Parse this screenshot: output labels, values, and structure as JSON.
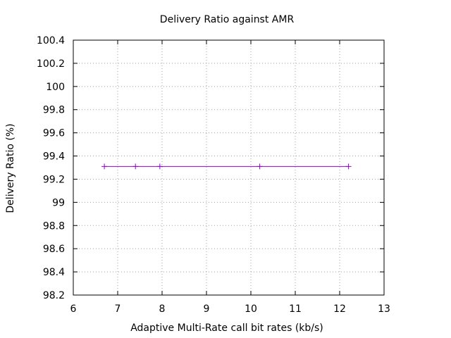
{
  "chart_data": {
    "type": "line",
    "title": "Delivery Ratio against AMR",
    "xlabel": "Adaptive Multi-Rate call bit rates (kb/s)",
    "ylabel": "Delivery Ratio (%)",
    "xlim": [
      6,
      13
    ],
    "ylim": [
      98.2,
      100.4
    ],
    "xticks": [
      "6",
      "7",
      "8",
      "9",
      "10",
      "11",
      "12",
      "13"
    ],
    "yticks": [
      "98.2",
      "98.4",
      "98.6",
      "98.8",
      "99",
      "99.2",
      "99.4",
      "99.6",
      "99.8",
      "100",
      "100.2",
      "100.4"
    ],
    "grid": true,
    "legend": "none",
    "series": [
      {
        "color": "#9400d3",
        "marker": "plus",
        "points": [
          {
            "x": 6.7,
            "y": 99.31
          },
          {
            "x": 7.4,
            "y": 99.31
          },
          {
            "x": 7.95,
            "y": 99.31
          },
          {
            "x": 10.2,
            "y": 99.31
          },
          {
            "x": 12.2,
            "y": 99.31
          }
        ]
      }
    ]
  }
}
